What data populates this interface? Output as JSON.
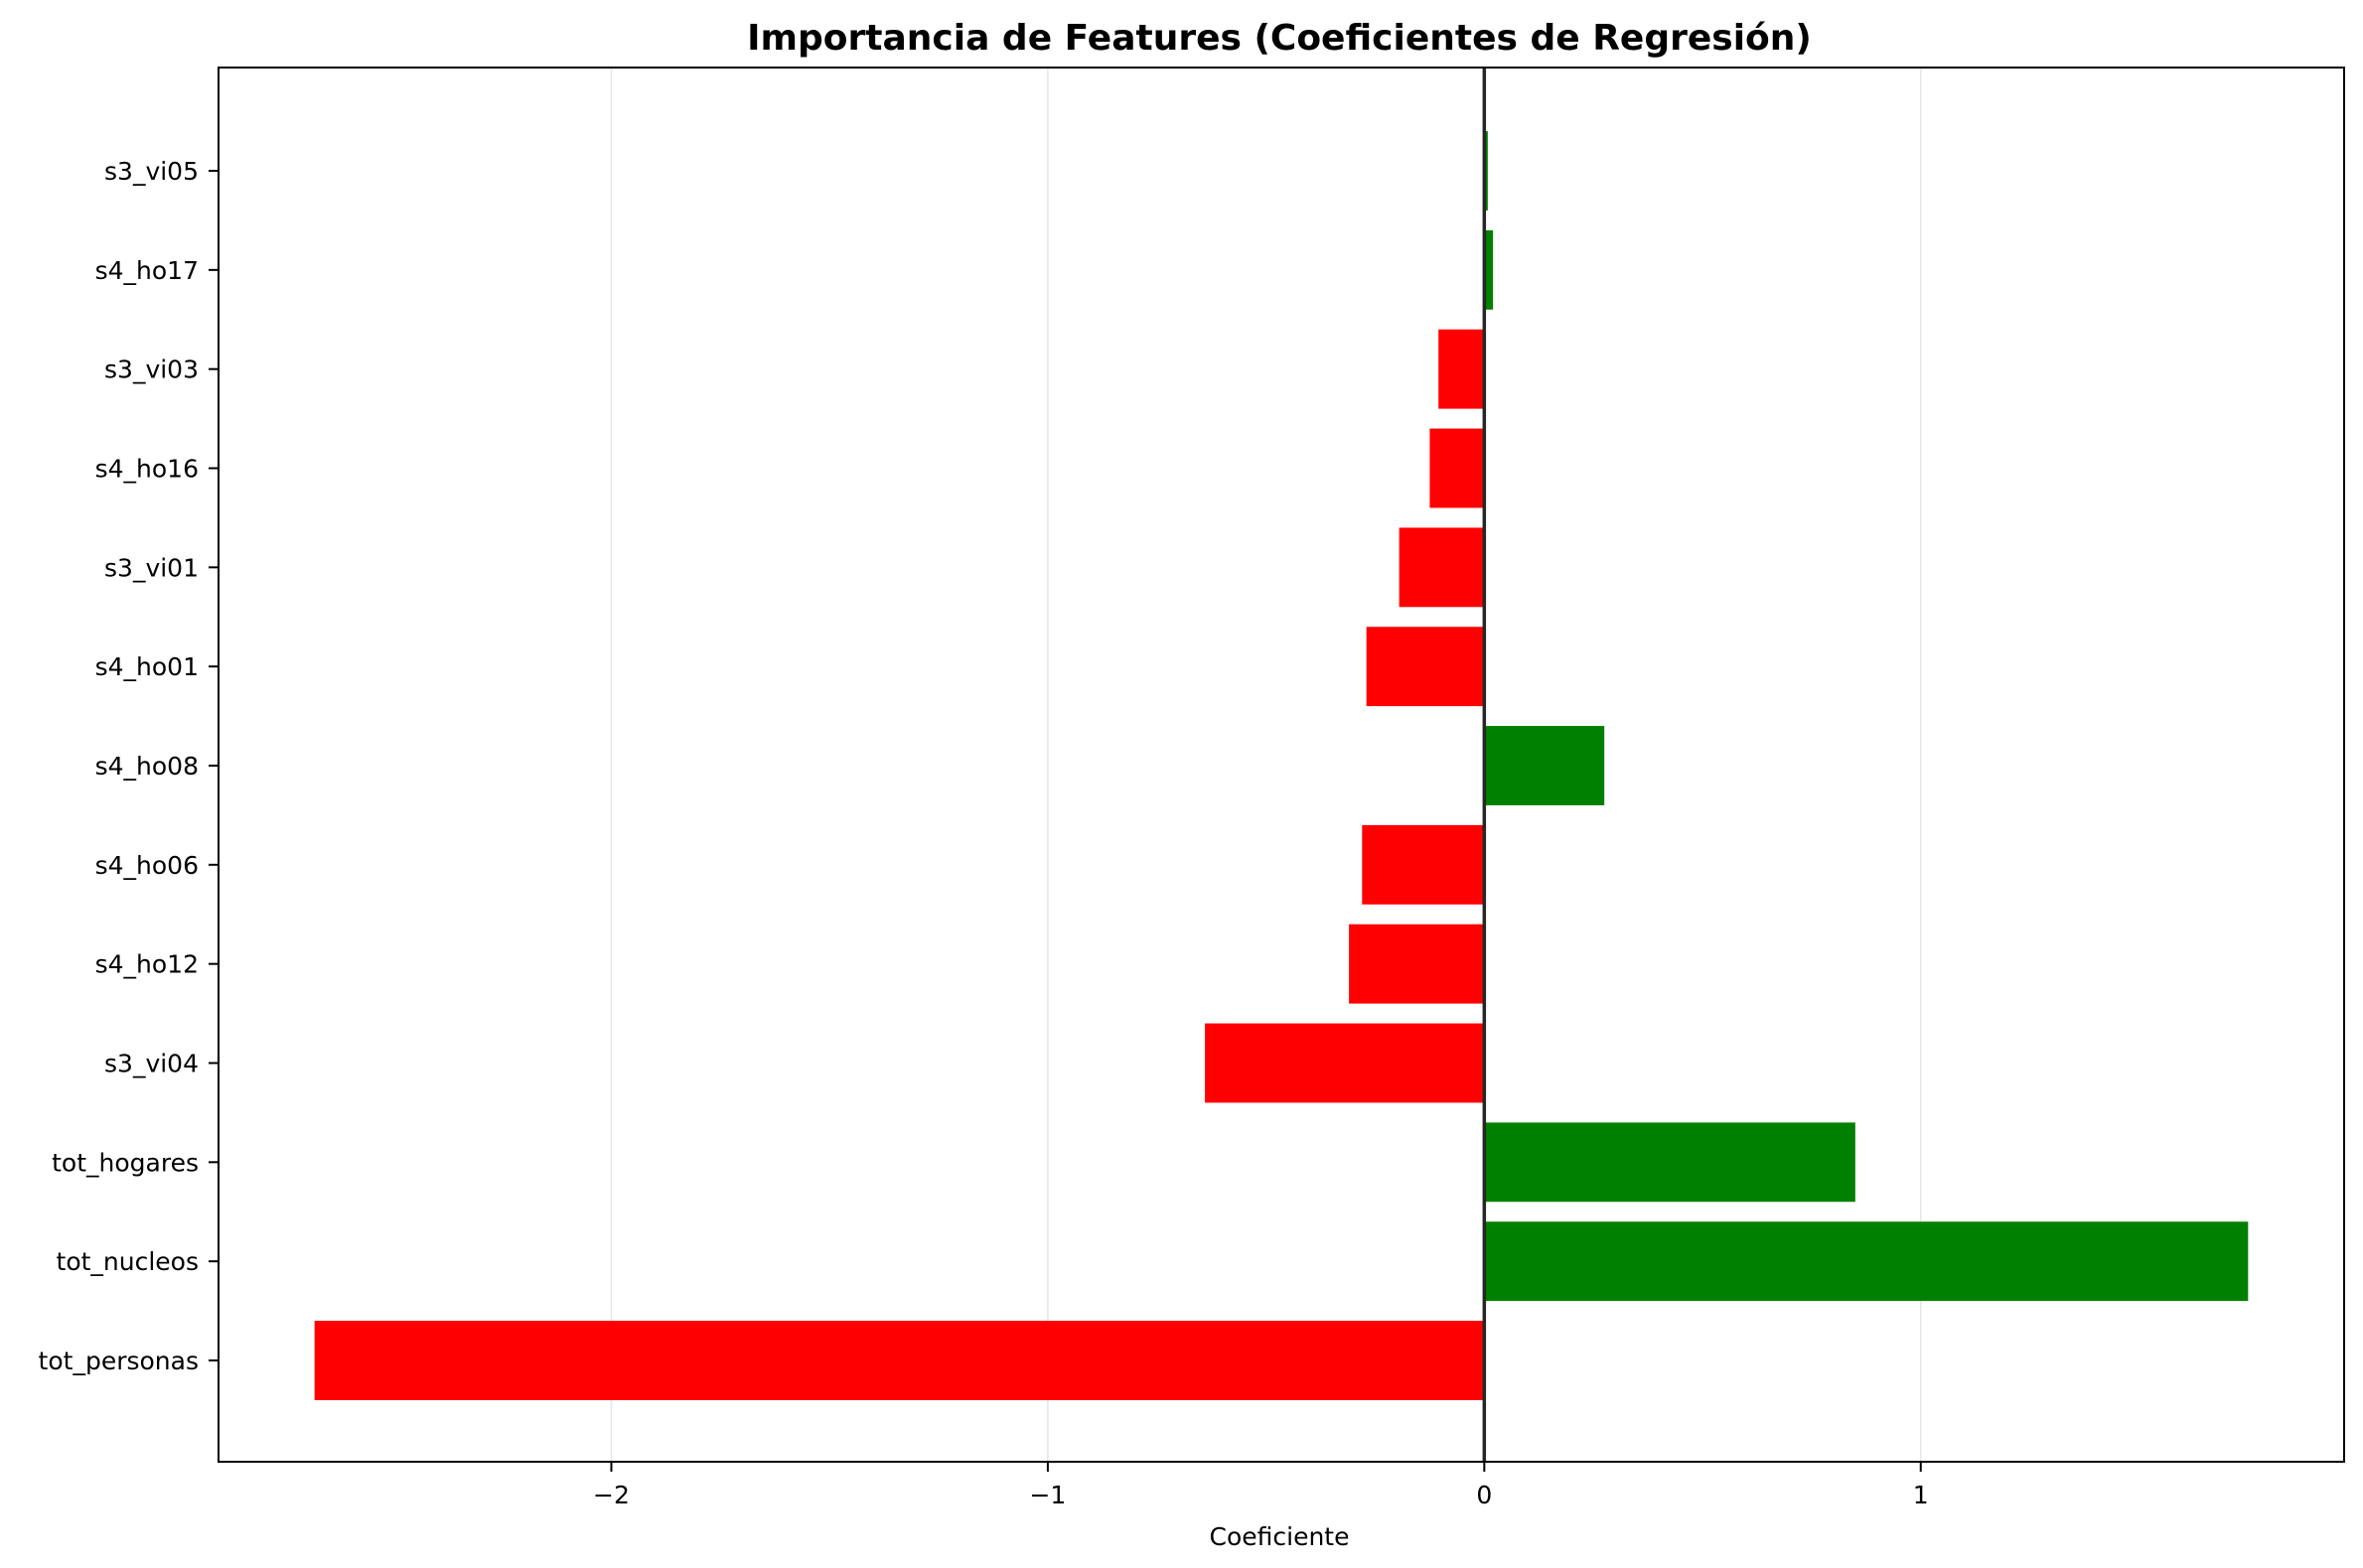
{
  "chart_data": {
    "type": "bar",
    "orientation": "horizontal",
    "title": "Importancia de Features (Coeficientes de Regresión)",
    "xlabel": "Coeficiente",
    "ylabel": "",
    "xlim": [
      -2.9,
      1.97
    ],
    "grid": "x-only",
    "x_ticks": [
      {
        "value": -2,
        "label": "−2"
      },
      {
        "value": -1,
        "label": "−1"
      },
      {
        "value": 0,
        "label": "0"
      },
      {
        "value": 1,
        "label": "1"
      }
    ],
    "categories": [
      "tot_personas",
      "tot_nucleos",
      "tot_hogares",
      "s3_vi04",
      "s4_ho12",
      "s4_ho06",
      "s4_ho08",
      "s4_ho01",
      "s3_vi01",
      "s4_ho16",
      "s3_vi03",
      "s4_ho17",
      "s3_vi05"
    ],
    "values": [
      -2.68,
      1.75,
      0.85,
      -0.64,
      -0.31,
      -0.28,
      0.275,
      -0.27,
      -0.195,
      -0.125,
      -0.105,
      0.02,
      0.008
    ],
    "colors": {
      "positive": "#008000",
      "negative": "#ff0000",
      "zero_line": "#262626",
      "grid": "#e6e6e6"
    }
  }
}
